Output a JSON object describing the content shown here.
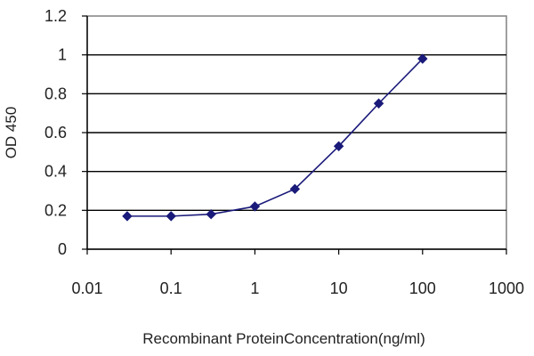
{
  "chart_data": {
    "type": "line",
    "title": "",
    "xlabel": "Recombinant ProteinConcentration(ng/ml)",
    "ylabel": "OD 450",
    "x_scale": "log",
    "xlim": [
      0.01,
      1000
    ],
    "ylim": [
      0,
      1.2
    ],
    "x_ticks": [
      "0.01",
      "0.1",
      "1",
      "10",
      "100",
      "1000"
    ],
    "y_ticks": [
      "0",
      "0.2",
      "0.4",
      "0.6",
      "0.8",
      "1",
      "1.2"
    ],
    "grid": "horizontal",
    "legend": "none",
    "series": [
      {
        "color": "#1a1a7a",
        "marker": "diamond",
        "x": [
          0.03,
          0.1,
          0.3,
          1,
          3,
          10,
          30,
          100
        ],
        "y": [
          0.17,
          0.17,
          0.18,
          0.22,
          0.31,
          0.53,
          0.75,
          0.98
        ]
      }
    ]
  }
}
